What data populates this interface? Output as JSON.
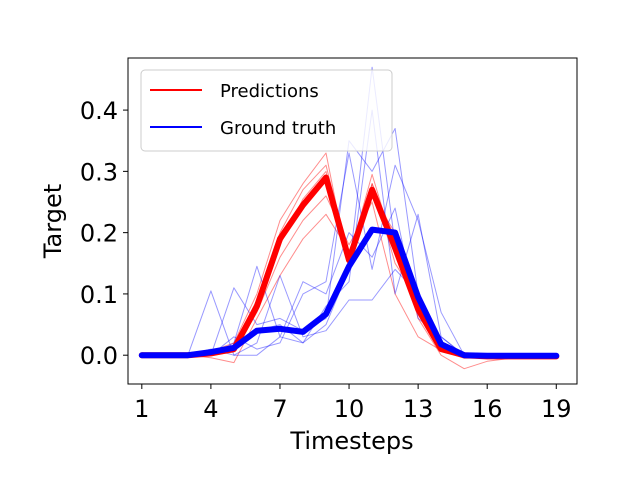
{
  "chart_data": {
    "type": "line",
    "title": "",
    "xlabel": "Timesteps",
    "ylabel": "Target",
    "xlim": [
      0.4,
      19.9
    ],
    "ylim": [
      -0.047,
      0.485
    ],
    "xticks": [
      1,
      4,
      7,
      10,
      13,
      16,
      19
    ],
    "yticks": [
      0.0,
      0.1,
      0.2,
      0.3,
      0.4
    ],
    "ytick_labels": [
      "0.0",
      "0.1",
      "0.2",
      "0.3",
      "0.4"
    ],
    "grid": false,
    "legend": {
      "position": "top-left",
      "entries": [
        "Predictions",
        "Ground truth"
      ]
    },
    "colors": {
      "predictions": "#ff0000",
      "ground_truth": "#0000ff"
    },
    "x": [
      1,
      2,
      3,
      4,
      5,
      6,
      7,
      8,
      9,
      10,
      11,
      12,
      13,
      14,
      15,
      16,
      17,
      18,
      19
    ],
    "series": [
      {
        "name": "Predictions",
        "values": [
          0.0,
          0.0,
          0.0,
          0.003,
          0.01,
          0.08,
          0.19,
          0.245,
          0.29,
          0.155,
          0.27,
          0.175,
          0.075,
          0.01,
          0.0,
          -0.002,
          -0.002,
          -0.002,
          -0.002
        ]
      },
      {
        "name": "Ground truth",
        "values": [
          0.0,
          0.0,
          0.0,
          0.005,
          0.012,
          0.04,
          0.043,
          0.038,
          0.067,
          0.145,
          0.205,
          0.2,
          0.095,
          0.018,
          0.0,
          -0.001,
          -0.001,
          -0.001,
          -0.001
        ]
      }
    ],
    "faint_predictions": [
      [
        0.004,
        0.0,
        0.0,
        -0.004,
        -0.012,
        0.06,
        0.13,
        0.19,
        0.23,
        0.17,
        0.26,
        0.2,
        0.06,
        0.0,
        -0.022,
        -0.01,
        -0.005,
        -0.003,
        -0.004
      ],
      [
        0.0,
        0.0,
        0.002,
        0.006,
        0.02,
        0.1,
        0.22,
        0.28,
        0.33,
        0.14,
        0.28,
        0.15,
        0.09,
        0.02,
        0.004,
        0.0,
        -0.002,
        -0.002,
        -0.003
      ],
      [
        0.0,
        0.001,
        0.0,
        0.004,
        0.015,
        0.09,
        0.2,
        0.27,
        0.31,
        0.16,
        0.295,
        0.17,
        0.08,
        0.015,
        0.003,
        -0.002,
        -0.003,
        -0.004,
        -0.005
      ],
      [
        0.003,
        0.0,
        0.001,
        0.0,
        0.005,
        0.07,
        0.16,
        0.22,
        0.26,
        0.18,
        0.25,
        0.1,
        0.03,
        0.008,
        -0.005,
        -0.004,
        -0.003,
        -0.003,
        -0.003
      ],
      [
        0.001,
        0.0,
        0.0,
        0.002,
        0.008,
        0.085,
        0.18,
        0.255,
        0.3,
        0.15,
        0.28,
        0.19,
        0.07,
        0.012,
        0.0,
        -0.002,
        -0.002,
        -0.003,
        -0.003
      ]
    ],
    "faint_ground_truth": [
      [
        0.0,
        0.0,
        0.0,
        0.105,
        0.0,
        0.0,
        0.03,
        0.02,
        0.05,
        0.14,
        0.47,
        0.18,
        0.1,
        0.02,
        0.0,
        0.0,
        0.0,
        0.0,
        0.0
      ],
      [
        0.0,
        0.0,
        0.0,
        0.0,
        0.11,
        0.05,
        0.06,
        0.04,
        0.06,
        0.35,
        0.3,
        0.37,
        0.1,
        0.02,
        0.0,
        0.0,
        0.0,
        0.0,
        0.0
      ],
      [
        0.0,
        0.0,
        0.0,
        0.0,
        0.02,
        0.145,
        0.03,
        0.12,
        0.1,
        0.2,
        0.16,
        0.24,
        0.06,
        0.03,
        0.0,
        0.0,
        0.0,
        0.0,
        0.0
      ],
      [
        0.0,
        0.0,
        0.0,
        0.01,
        0.0,
        0.02,
        0.13,
        0.03,
        0.04,
        0.09,
        0.09,
        0.14,
        0.1,
        0.01,
        0.0,
        0.0,
        0.0,
        0.0,
        0.0
      ],
      [
        0.0,
        0.0,
        0.0,
        0.0,
        0.03,
        0.01,
        0.02,
        0.1,
        0.12,
        0.33,
        0.14,
        0.31,
        0.22,
        0.07,
        0.0,
        0.0,
        0.0,
        0.0,
        0.0
      ],
      [
        0.0,
        0.0,
        0.0,
        0.0,
        0.01,
        0.04,
        0.05,
        0.02,
        0.08,
        0.12,
        0.4,
        0.1,
        0.23,
        0.03,
        0.0,
        0.0,
        0.0,
        0.0,
        0.0
      ]
    ]
  }
}
